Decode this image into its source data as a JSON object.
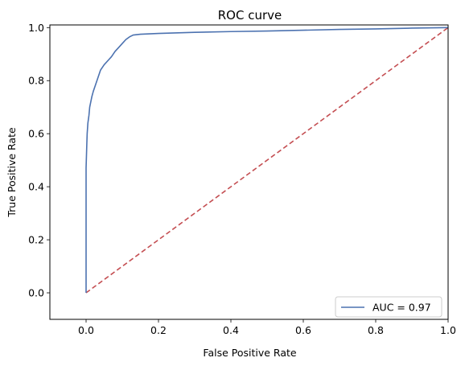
{
  "chart_data": {
    "type": "line",
    "title": "ROC curve",
    "xlabel": "False Positive Rate",
    "ylabel": "True Positive Rate",
    "xlim": [
      -0.1,
      1.0
    ],
    "ylim": [
      -0.1,
      1.01
    ],
    "xticks": [
      "0.0",
      "0.2",
      "0.4",
      "0.6",
      "0.8",
      "1.0"
    ],
    "yticks": [
      "0.0",
      "0.2",
      "0.4",
      "0.6",
      "0.8",
      "1.0"
    ],
    "grid": false,
    "legend_position": "lower-right",
    "series": [
      {
        "name": "AUC = 0.97",
        "color": "#4c72b0",
        "style": "solid",
        "x": [
          0.0,
          0.0,
          0.002,
          0.003,
          0.005,
          0.008,
          0.01,
          0.013,
          0.016,
          0.02,
          0.025,
          0.03,
          0.035,
          0.04,
          0.05,
          0.06,
          0.07,
          0.08,
          0.09,
          0.1,
          0.11,
          0.12,
          0.13,
          0.15,
          0.2,
          0.3,
          0.4,
          0.5,
          0.6,
          0.7,
          0.8,
          0.9,
          1.0
        ],
        "y": [
          0.0,
          0.47,
          0.56,
          0.6,
          0.64,
          0.67,
          0.7,
          0.72,
          0.74,
          0.76,
          0.78,
          0.8,
          0.82,
          0.84,
          0.86,
          0.875,
          0.89,
          0.91,
          0.925,
          0.94,
          0.955,
          0.965,
          0.972,
          0.975,
          0.978,
          0.982,
          0.985,
          0.987,
          0.99,
          0.993,
          0.995,
          0.998,
          1.0
        ]
      },
      {
        "name": "",
        "color": "#c44e52",
        "style": "dashed",
        "x": [
          0.0,
          1.0
        ],
        "y": [
          0.0,
          1.0
        ]
      }
    ]
  }
}
